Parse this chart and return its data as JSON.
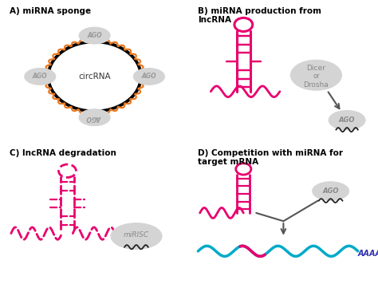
{
  "background_color": "#ffffff",
  "panel_A_title": "A) miRNA sponge",
  "panel_B_title": "B) miRNA production from\nlncRNA",
  "panel_C_title": "C) lncRNA degradation",
  "panel_D_title": "D) Competition with miRNA for\ntarget mRNA",
  "pink": "#e8006e",
  "orange": "#e87820",
  "gray_bg": "#d4d4d4",
  "cyan": "#00aac8",
  "purple": "#3030b0",
  "dark_gray": "#555555"
}
